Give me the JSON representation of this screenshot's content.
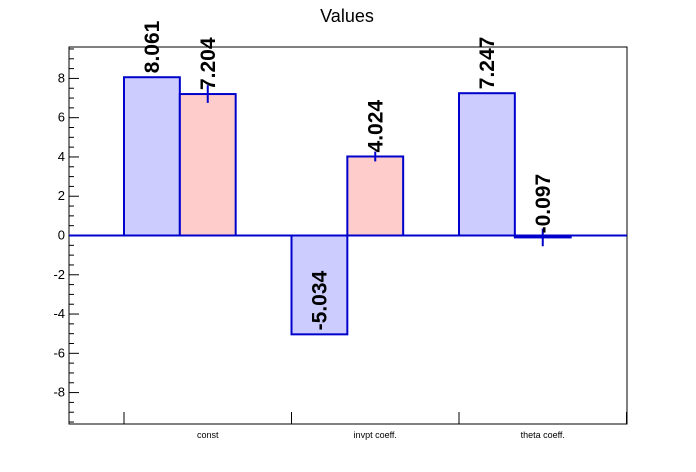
{
  "chart_data": {
    "type": "bar",
    "title": "Values",
    "xlabel": "",
    "ylabel": "",
    "categories": [
      "const",
      "invpt coeff.",
      "theta coeff."
    ],
    "series": [
      {
        "values": [
          8.061,
          -5.034,
          7.247
        ],
        "errors": [
          0,
          0,
          0
        ],
        "fill": "#ccccff"
      },
      {
        "values": [
          7.204,
          4.024,
          -0.097
        ],
        "errors": [
          0.45,
          0.25,
          0.45
        ],
        "fill": "#ffcccc"
      }
    ],
    "data_labels": [
      [
        "8.061",
        "-5.034",
        "7.247"
      ],
      [
        "7.204",
        "4.024",
        "-0.097"
      ]
    ],
    "ylim": [
      -9.6,
      9.6
    ],
    "yticks": [
      -8,
      -6,
      -4,
      -2,
      0,
      2,
      4,
      6,
      8
    ],
    "grid": false,
    "legend": "none",
    "colors": {
      "stroke": "#0000cc",
      "axis": "#000000"
    }
  }
}
